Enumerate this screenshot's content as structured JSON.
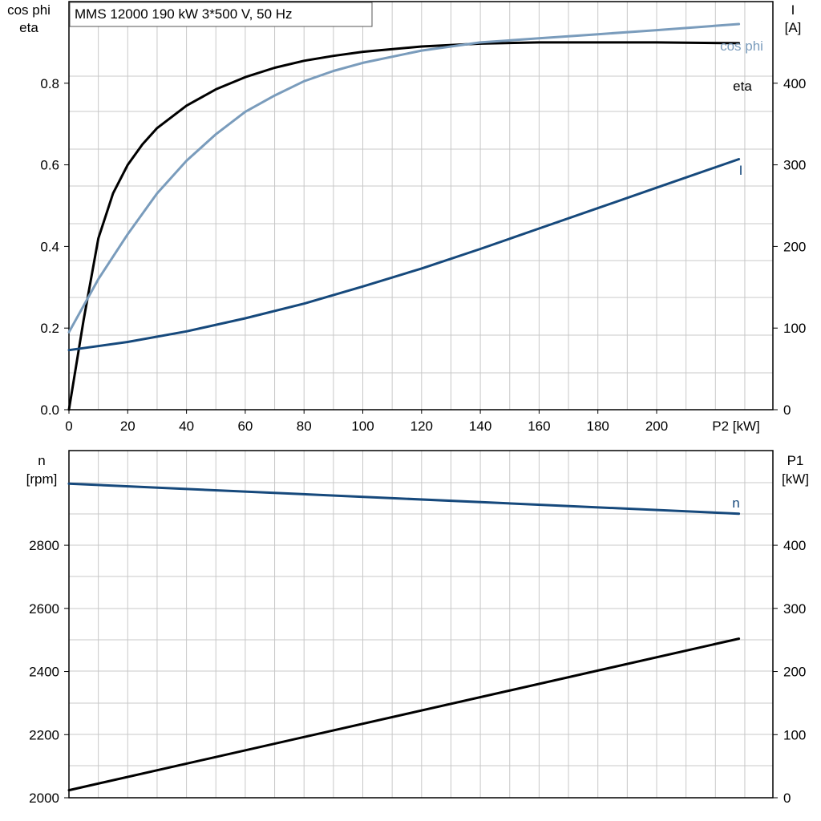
{
  "title": "MMS 12000   190 kW   3*500 V, 50 Hz",
  "chart_data": [
    {
      "type": "line",
      "xlabel": "P2 [kW]",
      "xlim": [
        0,
        240
      ],
      "x_ticks": [
        0,
        20,
        40,
        60,
        80,
        100,
        120,
        140,
        160,
        180,
        200
      ],
      "ylabel_left": [
        "cos phi",
        "eta"
      ],
      "ylim_left": [
        0,
        1.0
      ],
      "y_ticks_left": [
        "0.0",
        "0.2",
        "0.4",
        "0.6",
        "0.8"
      ],
      "ylabel_right": [
        "I",
        "[A]"
      ],
      "ylim_right": [
        0,
        500
      ],
      "y_ticks_right": [
        "0",
        "100",
        "200",
        "300",
        "400"
      ],
      "grid": true,
      "series": [
        {
          "name": "eta",
          "axis": "left",
          "color": "#000000",
          "x": [
            0,
            5,
            10,
            15,
            20,
            25,
            30,
            40,
            50,
            60,
            70,
            80,
            90,
            100,
            120,
            140,
            160,
            180,
            200,
            228
          ],
          "y": [
            0.0,
            0.22,
            0.42,
            0.53,
            0.6,
            0.65,
            0.69,
            0.745,
            0.785,
            0.815,
            0.838,
            0.855,
            0.867,
            0.877,
            0.89,
            0.897,
            0.9,
            0.9,
            0.9,
            0.898
          ]
        },
        {
          "name": "cos phi",
          "axis": "left",
          "color": "#7a9cbc",
          "x": [
            0,
            10,
            20,
            30,
            40,
            50,
            60,
            70,
            80,
            90,
            100,
            120,
            140,
            160,
            180,
            200,
            228
          ],
          "y": [
            0.19,
            0.32,
            0.43,
            0.53,
            0.61,
            0.675,
            0.73,
            0.77,
            0.805,
            0.83,
            0.85,
            0.88,
            0.9,
            0.91,
            0.92,
            0.93,
            0.945
          ]
        },
        {
          "name": "I",
          "axis": "right",
          "color": "#16497c",
          "x": [
            0,
            20,
            40,
            60,
            80,
            100,
            120,
            140,
            160,
            180,
            200,
            228
          ],
          "y": [
            73,
            83,
            96,
            112,
            130,
            151,
            173,
            197,
            222,
            247,
            272,
            307
          ]
        }
      ]
    },
    {
      "type": "line",
      "xlim": [
        0,
        240
      ],
      "ylabel_left": [
        "n",
        "[rpm]"
      ],
      "ylim_left": [
        2000,
        3100
      ],
      "y_ticks_left": [
        "2000",
        "2200",
        "2400",
        "2600",
        "2800"
      ],
      "ylabel_right": [
        "P1",
        "[kW]"
      ],
      "ylim_right": [
        0,
        550
      ],
      "y_ticks_right": [
        "0",
        "100",
        "200",
        "300",
        "400"
      ],
      "grid": true,
      "series": [
        {
          "name": "n",
          "axis": "left",
          "color": "#16497c",
          "x": [
            0,
            228
          ],
          "y": [
            2995,
            2900
          ]
        },
        {
          "name": "",
          "axis": "right",
          "color": "#000000",
          "x": [
            0,
            228
          ],
          "y": [
            12,
            252
          ]
        }
      ]
    }
  ]
}
